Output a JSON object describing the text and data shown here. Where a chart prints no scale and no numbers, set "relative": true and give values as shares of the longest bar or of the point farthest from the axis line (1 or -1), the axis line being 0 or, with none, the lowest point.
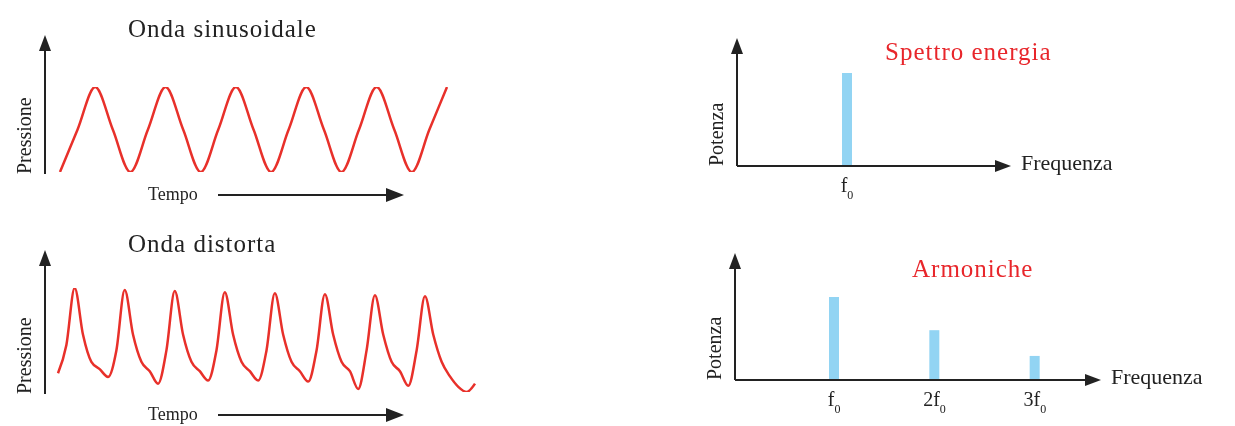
{
  "chart_data": [
    {
      "type": "line",
      "title": "Onda sinusoidale",
      "xlabel": "Tempo",
      "ylabel": "Pressione",
      "relative": true,
      "categories": [
        null,
        null,
        null,
        null,
        null,
        null,
        null,
        null,
        null,
        null,
        null,
        null,
        null,
        null,
        null,
        null,
        null,
        null,
        null,
        null,
        null,
        null,
        null
      ],
      "series": [
        {
          "color": "#e8302a",
          "values": [
            0,
            0.5,
            1,
            0.5,
            0,
            0.5,
            1,
            0.5,
            0,
            0.5,
            1,
            0.5,
            0,
            0.5,
            1,
            0.5,
            0,
            0.5,
            1,
            0.5,
            0,
            0.5,
            1
          ]
        }
      ]
    },
    {
      "type": "bar",
      "title": "Spettro energia",
      "xlabel": "Frequenza",
      "ylabel": "Potenza",
      "relative": true,
      "categories": [
        "f$_{0}$"
      ],
      "series": [
        {
          "color": "#92d4f3",
          "values": [
            1
          ]
        }
      ]
    },
    {
      "type": "line",
      "title": "Onda distorta",
      "xlabel": "Tempo",
      "ylabel": "Pressione",
      "relative": true,
      "categories": [
        null,
        null,
        null,
        null,
        null,
        null,
        null,
        null,
        null,
        null,
        null,
        null,
        null,
        null,
        null,
        null,
        null,
        null,
        null,
        null,
        null,
        null,
        null,
        null,
        null,
        null,
        null,
        null,
        null,
        null,
        null,
        null,
        null,
        null,
        null,
        null,
        null,
        null,
        null,
        null,
        null,
        null,
        null,
        null,
        null,
        null,
        null,
        null,
        null,
        null,
        null
      ],
      "series": [
        {
          "color": "#e8302a",
          "values": [
            0.18,
            0.45,
            1,
            0.55,
            0.29,
            0.22,
            0.145,
            0.4,
            0.98,
            0.55,
            0.29,
            0.2,
            0.08,
            0.4,
            0.97,
            0.55,
            0.29,
            0.2,
            0.11,
            0.4,
            0.96,
            0.55,
            0.29,
            0.2,
            0.11,
            0.4,
            0.95,
            0.55,
            0.29,
            0.2,
            0.1,
            0.4,
            0.94,
            0.55,
            0.29,
            0.2,
            0.03,
            0.4,
            0.93,
            0.55,
            0.29,
            0.2,
            0.06,
            0.4,
            0.92,
            0.55,
            0.29,
            0.15,
            0.05,
            0,
            0.08
          ]
        }
      ]
    },
    {
      "type": "bar",
      "title": "Armoniche",
      "xlabel": "Frequenza",
      "ylabel": "Potenza",
      "relative": true,
      "categories": [
        "f$_{0}$",
        "2f$_{0}$",
        "3f$_{0}$"
      ],
      "series": [
        {
          "color": "#92d4f3",
          "values": [
            1,
            0.6,
            0.29
          ]
        }
      ]
    }
  ]
}
